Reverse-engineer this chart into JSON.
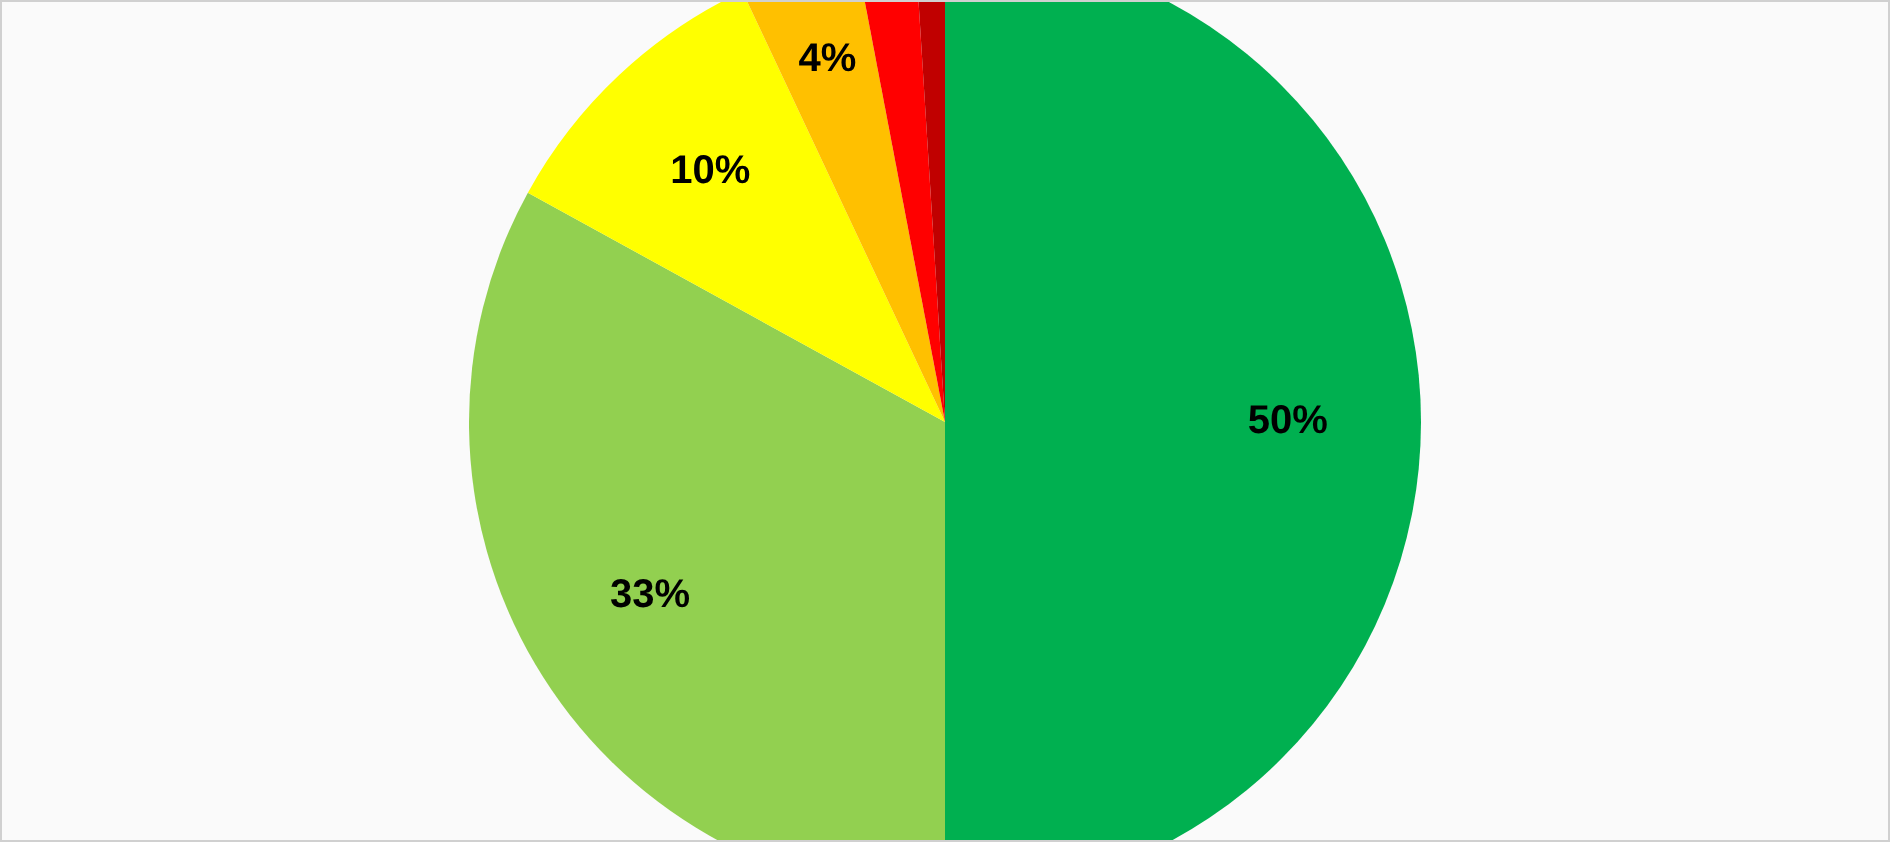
{
  "chart_data": {
    "type": "pie",
    "categories": [
      null,
      null,
      null,
      null,
      null,
      null
    ],
    "values": [
      50,
      33,
      10,
      4,
      2,
      1
    ],
    "colors": [
      "#00b050",
      "#92d050",
      "#ffff00",
      "#ffc000",
      "#ff0000",
      "#c00000"
    ],
    "value_labels": [
      "50%",
      "33%",
      "10%",
      "4%",
      null,
      null
    ],
    "legend": false
  }
}
